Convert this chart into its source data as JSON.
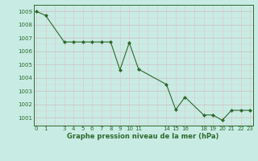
{
  "x": [
    0,
    1,
    3,
    4,
    5,
    6,
    7,
    8,
    9,
    10,
    11,
    14,
    15,
    16,
    18,
    19,
    20,
    21,
    22,
    23
  ],
  "y": [
    1009.0,
    1008.7,
    1006.7,
    1006.7,
    1006.7,
    1006.7,
    1006.7,
    1006.7,
    1004.6,
    1006.65,
    1004.65,
    1003.5,
    1001.6,
    1002.55,
    1001.2,
    1001.2,
    1000.8,
    1001.55,
    1001.55,
    1001.55
  ],
  "line_color": "#2d6a2d",
  "marker_color": "#2d6a2d",
  "bg_color": "#c8ece4",
  "grid_color_major": "#c0c8c0",
  "grid_color_pink": "#e0c8cc",
  "xlabel": "Graphe pression niveau de la mer (hPa)",
  "xlabel_color": "#2d6a2d",
  "xticks": [
    0,
    1,
    3,
    4,
    5,
    6,
    7,
    8,
    9,
    10,
    11,
    14,
    15,
    16,
    18,
    19,
    20,
    21,
    22,
    23
  ],
  "yticks": [
    1001,
    1002,
    1003,
    1004,
    1005,
    1006,
    1007,
    1008,
    1009
  ],
  "ylim": [
    1000.4,
    1009.5
  ],
  "xlim": [
    -0.3,
    23.3
  ],
  "tick_color": "#2d6a2d",
  "spine_color": "#2d6a2d"
}
